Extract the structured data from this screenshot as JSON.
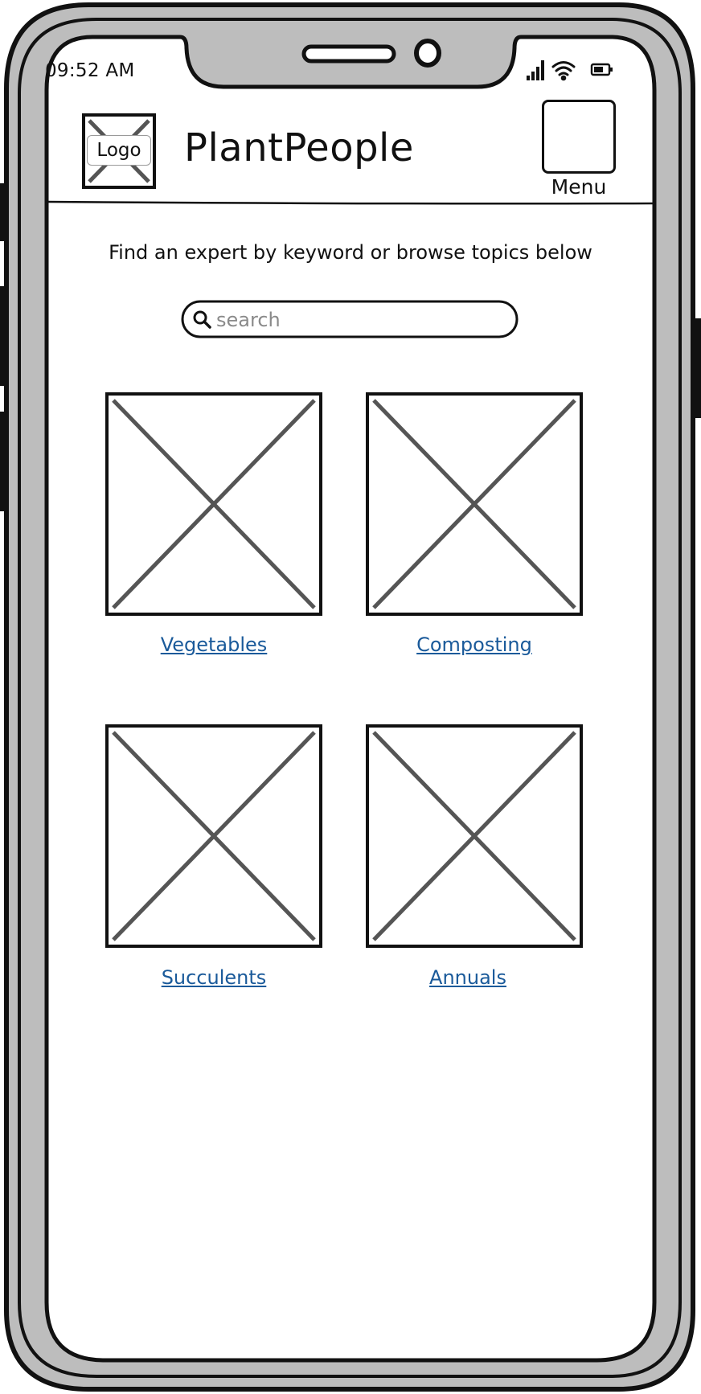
{
  "status_bar": {
    "time": "09:52 AM",
    "icons": [
      "signal-icon",
      "wifi-icon",
      "battery-icon"
    ]
  },
  "header": {
    "logo_label": "Logo",
    "brand_name": "PlantPeople",
    "menu_label": "Menu"
  },
  "main": {
    "intro_text": "Find an expert by keyword or browse topics below",
    "search": {
      "placeholder": "search",
      "value": ""
    },
    "topics": [
      {
        "label": "Vegetables"
      },
      {
        "label": "Composting"
      },
      {
        "label": "Succulents"
      },
      {
        "label": "Annuals"
      }
    ]
  },
  "colors": {
    "frame_gray": "#bdbdbd",
    "outline": "#111111",
    "placeholder_cross": "#555555",
    "link": "#1a5a9a"
  }
}
